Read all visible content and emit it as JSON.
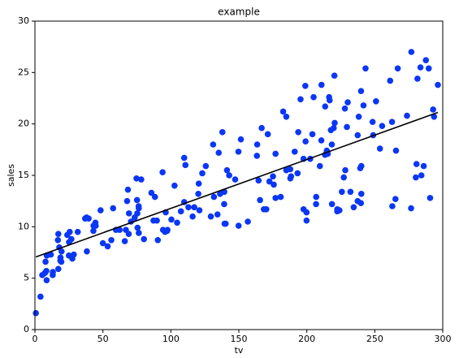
{
  "chart_data": {
    "type": "scatter",
    "title": "example",
    "xlabel": "tv",
    "ylabel": "sales",
    "color": "#0a36f5",
    "x": [
      230.1,
      44.5,
      17.2,
      151.5,
      180.8,
      8.7,
      57.5,
      120.2,
      8.6,
      199.8,
      66.1,
      214.7,
      23.8,
      97.5,
      204.1,
      195.4,
      67.8,
      281.4,
      69.2,
      147.3,
      218.4,
      237.4,
      13.2,
      228.3,
      62.3,
      262.9,
      142.9,
      240.1,
      248.8,
      70.6,
      292.9,
      112.9,
      97.2,
      265.6,
      95.7,
      290.7,
      266.9,
      74.7,
      43.1,
      228,
      202.5,
      177,
      293.6,
      206.9,
      25.1,
      175.1,
      89.7,
      239.9,
      227.2,
      66.9,
      199.8,
      100.4,
      216.4,
      182.6,
      262.7,
      198.9,
      7.3,
      136.2,
      210.8,
      210.7,
      53.5,
      261.3,
      239.3,
      102.7,
      131.1,
      69,
      31.5,
      139.3,
      237.4,
      216.8,
      199.1,
      109.8,
      26.8,
      129.4,
      213.4,
      16.9,
      27.5,
      120.5,
      5.4,
      116,
      76.4,
      239.8,
      75.3,
      68.4,
      213.5,
      193.2,
      76.3,
      110.7,
      88.3,
      109.8,
      134.3,
      28.6,
      217.7,
      250.9,
      107.4,
      163.3,
      197.6,
      184.9,
      289.7,
      135.2,
      222.4,
      296.4,
      280.2,
      187.9,
      238.2,
      137.9,
      25,
      90.4,
      13.1,
      255.4,
      225.8,
      241.7,
      175.7,
      209.6,
      78.2,
      75.1,
      139.2,
      76.4,
      125.7,
      19.4,
      141.3,
      18.8,
      224,
      123.1,
      229.5,
      87.2,
      7.8,
      80.2,
      220.3,
      59.6,
      0.7,
      265.2,
      8.4,
      219.8,
      36.9,
      48.3,
      25.6,
      273.7,
      43,
      184.9,
      73.4,
      193.7,
      220.5,
      104.6,
      96.2,
      140.3,
      240.1,
      243.2,
      38,
      44.7,
      280.7,
      121,
      197.6,
      171.3,
      187.8,
      4.1,
      93.9,
      149.8,
      11.7,
      131.7,
      172.5,
      85.7,
      188.4,
      163.5,
      117.2,
      234.5,
      17.9,
      206.8,
      215.4,
      284.3,
      50,
      164.5,
      19.6,
      168.4,
      222.4,
      276.9,
      248.4,
      170.2,
      276.7,
      165.6,
      156.6,
      218.5,
      56.2,
      287.6,
      253.8,
      205,
      139.5,
      191.1,
      286,
      18.7,
      39.5,
      75.5,
      17.2,
      166.8,
      149.7,
      38.2,
      94.2,
      177,
      283.6,
      232.1
    ],
    "values": [
      22.1,
      10.4,
      9.3,
      18.5,
      12.9,
      7.2,
      11.8,
      13.2,
      4.8,
      10.6,
      8.6,
      17.4,
      9.2,
      9.7,
      19,
      22.4,
      12.5,
      24.4,
      11.3,
      14.6,
      18,
      12.5,
      5.6,
      15.5,
      9.7,
      12,
      15,
      15.9,
      18.9,
      10.5,
      21.4,
      11.9,
      9.6,
      17.4,
      9.5,
      12.8,
      25.4,
      14.7,
      10.1,
      21.5,
      16.6,
      17.1,
      20.7,
      12.9,
      8.5,
      14.9,
      10.6,
      23.2,
      14.8,
      9.7,
      11.4,
      10.7,
      22.6,
      21.2,
      20.2,
      23.7,
      5.5,
      13.2,
      23.8,
      18.4,
      8.1,
      24.2,
      15.7,
      14,
      18,
      9.3,
      9.5,
      13.4,
      18.9,
      22.3,
      18.3,
      12.4,
      8.8,
      11,
      17,
      8.7,
      6.9,
      14.2,
      5.3,
      11,
      11.8,
      12.3,
      11.3,
      13.6,
      21.7,
      15.2,
      12,
      16,
      12.9,
      16.7,
      11.2,
      7.3,
      19.4,
      22.2,
      11.5,
      16.9,
      11.7,
      15.5,
      25.4,
      17.2,
      11.7,
      23.8,
      14.8,
      14.7,
      20.7,
      19.2,
      7.2,
      8.7,
      5.3,
      19.8,
      13.4,
      21.8,
      14.1,
      15.9,
      14.6,
      12.6,
      12.2,
      9.4,
      15.9,
      6.6,
      15.5,
      7,
      11.6,
      15.2,
      19.7,
      10.6,
      6.6,
      8.8,
      24.7,
      9.7,
      1.6,
      12.7,
      5.7,
      19.6,
      10.8,
      11.6,
      9.5,
      20.8,
      9.6,
      20.7,
      10.9,
      19.2,
      20.1,
      10.4,
      11.4,
      10.3,
      13.2,
      25.4,
      10.9,
      10.1,
      16.1,
      11.6,
      16.6,
      19,
      15.6,
      3.2,
      15.3,
      10.1,
      7.3,
      12.9,
      14.4,
      13.3,
      14.9,
      18,
      11.9,
      11.9,
      8,
      12.2,
      17.1,
      15,
      8.4,
      14.5,
      7.6,
      11.7,
      11.5,
      27,
      20.2,
      11.7,
      11.8,
      12.6,
      10.5,
      12.2,
      8.7,
      26.2,
      17.6,
      22.6,
      10.3,
      17.3,
      15.9,
      6.7,
      10.8,
      9.9,
      5.9,
      19.6,
      17.3,
      7.6,
      9.7,
      12.8,
      25.5,
      13.4
    ],
    "line": {
      "x": [
        0.7,
        296.4
      ],
      "values": [
        7.07,
        21.12
      ],
      "color": "#000000"
    },
    "xlim": [
      0,
      300
    ],
    "xticks": [
      0,
      50,
      100,
      150,
      200,
      250,
      300
    ],
    "ylim": [
      0,
      30
    ],
    "yticks": [
      0,
      5,
      10,
      15,
      20,
      25,
      30
    ]
  }
}
